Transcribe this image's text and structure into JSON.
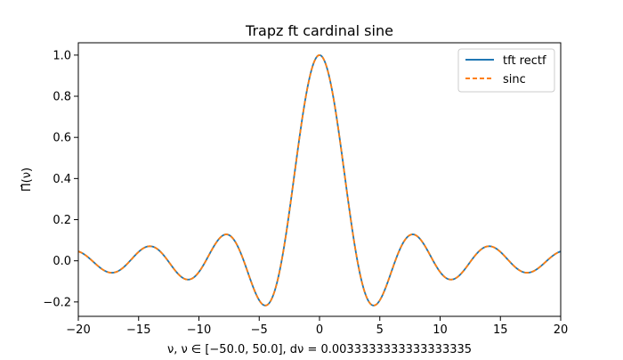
{
  "chart_data": {
    "type": "line",
    "title": "Trapz ft cardinal sine",
    "xlabel": "ν, ν ∈ [−50.0, 50.0], dν = 0.0033333333333333335",
    "ylabel": "Π̂(ν)",
    "xlim": [
      -20,
      20
    ],
    "ylim": [
      -0.27,
      1.06
    ],
    "x_ticks": [
      -20,
      -15,
      -10,
      -5,
      0,
      5,
      10,
      15,
      20
    ],
    "x_tick_labels": [
      "−20",
      "−15",
      "−10",
      "−5",
      "0",
      "5",
      "10",
      "15",
      "20"
    ],
    "y_ticks": [
      -0.2,
      0.0,
      0.2,
      0.4,
      0.6,
      0.8,
      1.0
    ],
    "y_tick_labels": [
      "−0.2",
      "0.0",
      "0.2",
      "0.4",
      "0.6",
      "0.8",
      "1.0"
    ],
    "grid": false,
    "legend_position": "upper right",
    "function": "sinc(x) = sin(πx)/(πx), evaluated at x = ν/π",
    "x": [
      -20,
      -19.5,
      -19,
      -18.5,
      -18,
      -17.5,
      -17,
      -16.5,
      -16,
      -15.5,
      -15,
      -14.5,
      -14,
      -13.5,
      -13,
      -12.5,
      -12,
      -11.5,
      -11,
      -10.5,
      -10,
      -9.5,
      -9,
      -8.5,
      -8,
      -7.5,
      -7,
      -6.5,
      -6,
      -5.5,
      -5,
      -4.5,
      -4,
      -3.5,
      -3,
      -2.5,
      -2,
      -1.5,
      -1,
      -0.5,
      0,
      0.5,
      1,
      1.5,
      2,
      2.5,
      3,
      3.5,
      4,
      4.5,
      5,
      5.5,
      6,
      6.5,
      7,
      7.5,
      8,
      8.5,
      9,
      9.5,
      10,
      10.5,
      11,
      11.5,
      12,
      12.5,
      13,
      13.5,
      14,
      14.5,
      15,
      15.5,
      16,
      16.5,
      17,
      17.5,
      18,
      18.5,
      19,
      19.5,
      20
    ],
    "series": [
      {
        "name": "tft rectf",
        "color": "#1f77b4",
        "style": "solid",
        "values": [
          0.0456,
          0.0312,
          0.0079,
          -0.0179,
          -0.0417,
          -0.0561,
          -0.0567,
          -0.0436,
          -0.0189,
          0.0117,
          0.0433,
          0.0646,
          0.0707,
          0.0591,
          0.0324,
          -0.0053,
          -0.0447,
          -0.0762,
          -0.0909,
          -0.0843,
          -0.0544,
          -0.0079,
          0.0458,
          0.0938,
          0.1237,
          0.1251,
          0.0939,
          0.033,
          -0.0466,
          -0.1283,
          -0.1918,
          -0.2172,
          -0.1892,
          -0.1002,
          0.047,
          0.2394,
          0.4546,
          0.665,
          0.8415,
          0.9589,
          1.0,
          0.9589,
          0.8415,
          0.665,
          0.4546,
          0.2394,
          0.047,
          -0.1002,
          -0.1892,
          -0.2172,
          -0.1918,
          -0.1283,
          -0.0466,
          0.033,
          0.0939,
          0.1251,
          0.1237,
          0.0938,
          0.0458,
          -0.0079,
          -0.0544,
          -0.0843,
          -0.0909,
          -0.0762,
          -0.0447,
          -0.0053,
          0.0324,
          0.0591,
          0.0707,
          0.0646,
          0.0433,
          0.0117,
          -0.0189,
          -0.0436,
          -0.0567,
          -0.0561,
          -0.0417,
          -0.0179,
          0.0079,
          0.0312,
          0.0456
        ]
      },
      {
        "name": "sinc",
        "color": "#ff7f0e",
        "style": "dashed",
        "values": [
          0.0456,
          0.0312,
          0.0079,
          -0.0179,
          -0.0417,
          -0.0561,
          -0.0567,
          -0.0436,
          -0.0189,
          0.0117,
          0.0433,
          0.0646,
          0.0707,
          0.0591,
          0.0324,
          -0.0053,
          -0.0447,
          -0.0762,
          -0.0909,
          -0.0843,
          -0.0544,
          -0.0079,
          0.0458,
          0.0938,
          0.1237,
          0.1251,
          0.0939,
          0.033,
          -0.0466,
          -0.1283,
          -0.1918,
          -0.2172,
          -0.1892,
          -0.1002,
          0.047,
          0.2394,
          0.4546,
          0.665,
          0.8415,
          0.9589,
          1.0,
          0.9589,
          0.8415,
          0.665,
          0.4546,
          0.2394,
          0.047,
          -0.1002,
          -0.1892,
          -0.2172,
          -0.1918,
          -0.1283,
          -0.0466,
          0.033,
          0.0939,
          0.1251,
          0.1237,
          0.0938,
          0.0458,
          -0.0079,
          -0.0544,
          -0.0843,
          -0.0909,
          -0.0762,
          -0.0447,
          -0.0053,
          0.0324,
          0.0591,
          0.0707,
          0.0646,
          0.0433,
          0.0117,
          -0.0189,
          -0.0436,
          -0.0567,
          -0.0561,
          -0.0417,
          -0.0179,
          0.0079,
          0.0312,
          0.0456
        ]
      }
    ]
  }
}
